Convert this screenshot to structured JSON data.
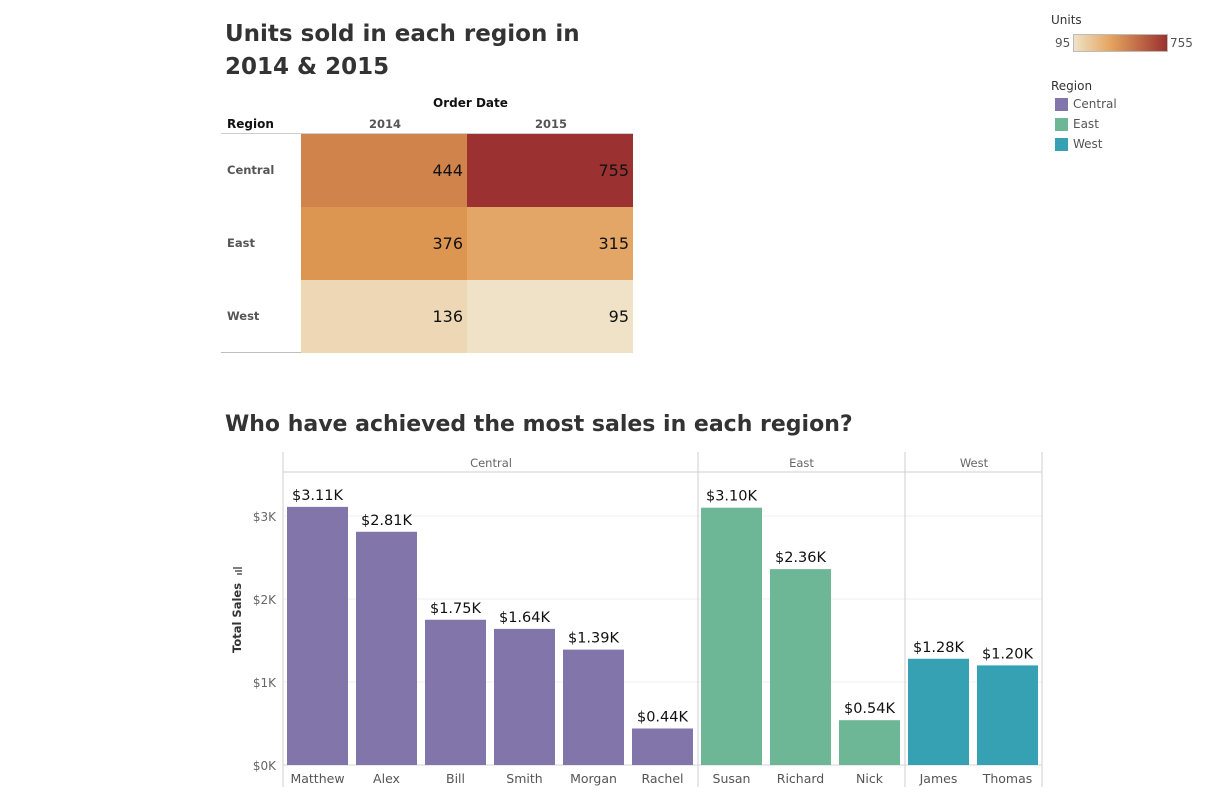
{
  "colors": {
    "Central": "#8175aa",
    "East": "#6db797",
    "West": "#35a1b3",
    "heat_low": "#efe2c6",
    "heat_high": "#9b3130"
  },
  "heatmap": {
    "title": "Units sold in each region in 2014 & 2015",
    "col_group_label": "Order Date",
    "row_header": "Region",
    "columns": [
      "2014",
      "2015"
    ],
    "rows": [
      "Central",
      "East",
      "West"
    ],
    "values": [
      [
        "444",
        "755"
      ],
      [
        "376",
        "315"
      ],
      [
        "136",
        "95"
      ]
    ]
  },
  "legend": {
    "units_title": "Units",
    "units_min": "95",
    "units_max": "755",
    "region_title": "Region",
    "regions": [
      "Central",
      "East",
      "West"
    ]
  },
  "chart_data": [
    {
      "type": "heatmap",
      "title": "Units sold in each region in 2014 & 2015",
      "x": [
        "2014",
        "2015"
      ],
      "y": [
        "Central",
        "East",
        "West"
      ],
      "values": [
        [
          444,
          755
        ],
        [
          376,
          315
        ],
        [
          136,
          95
        ]
      ],
      "color_range": [
        95,
        755
      ],
      "xlabel": "Order Date",
      "ylabel": "Region"
    },
    {
      "type": "bar",
      "title": "Who have achieved the most sales in each region?",
      "ylabel": "Total Sales",
      "ylim": [
        0,
        3250
      ],
      "yticks": [
        "$0K",
        "$1K",
        "$2K",
        "$3K"
      ],
      "groups": [
        {
          "name": "Central",
          "categories": [
            "Matthew",
            "Alex",
            "Bill",
            "Smith",
            "Morgan",
            "Rachel"
          ],
          "values": [
            3110,
            2810,
            1750,
            1640,
            1390,
            440
          ],
          "labels": [
            "$3.11K",
            "$2.81K",
            "$1.75K",
            "$1.64K",
            "$1.39K",
            "$0.44K"
          ]
        },
        {
          "name": "East",
          "categories": [
            "Susan",
            "Richard",
            "Nick"
          ],
          "values": [
            3100,
            2360,
            540
          ],
          "labels": [
            "$3.10K",
            "$2.36K",
            "$0.54K"
          ]
        },
        {
          "name": "West",
          "categories": [
            "James",
            "Thomas"
          ],
          "values": [
            1280,
            1200
          ],
          "labels": [
            "$1.28K",
            "$1.20K"
          ]
        }
      ]
    }
  ]
}
